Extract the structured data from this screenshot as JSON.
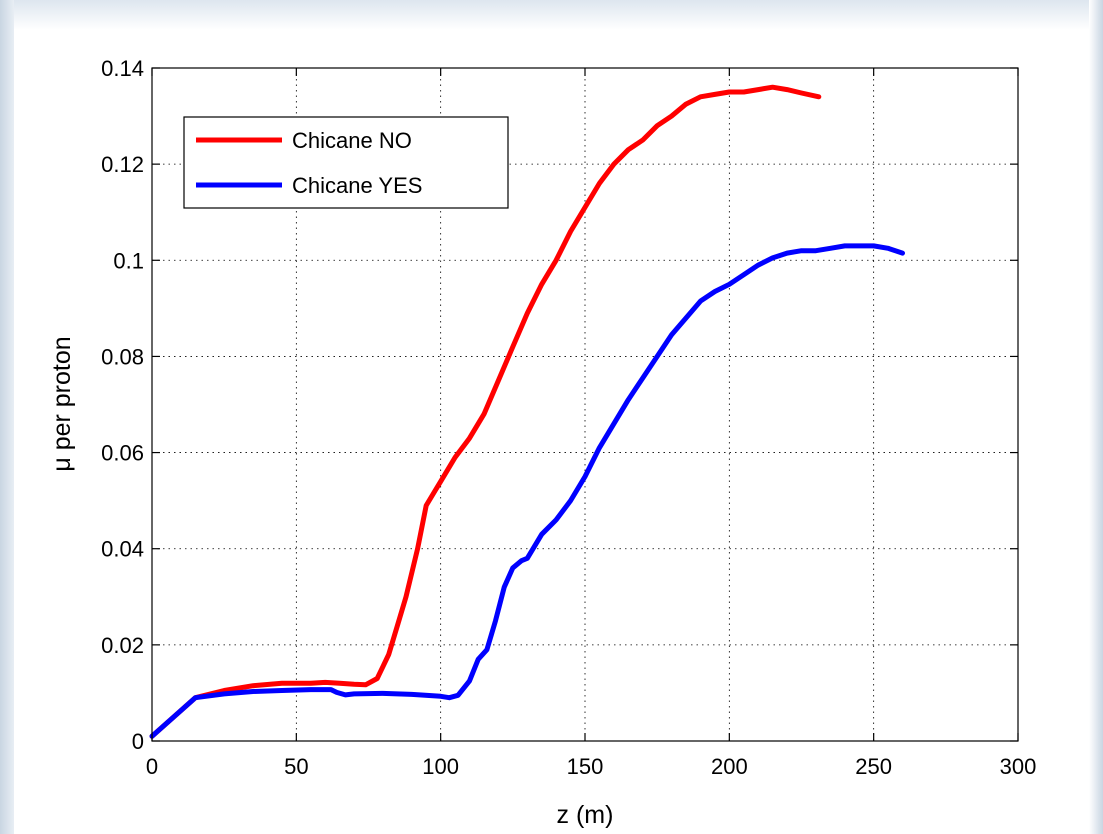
{
  "chart_data": {
    "type": "line",
    "title": "",
    "xlabel": "z (m)",
    "ylabel": "μ per proton",
    "xlim": [
      0,
      300
    ],
    "ylim": [
      0,
      0.14
    ],
    "xticks": [
      0,
      50,
      100,
      150,
      200,
      250,
      300
    ],
    "yticks": [
      0,
      0.02,
      0.04,
      0.06,
      0.08,
      0.1,
      0.12,
      0.14
    ],
    "xtick_labels": [
      "0",
      "50",
      "100",
      "150",
      "200",
      "250",
      "300"
    ],
    "ytick_labels": [
      "0",
      "0.02",
      "0.04",
      "0.06",
      "0.08",
      "0.1",
      "0.12",
      "0.14"
    ],
    "grid": true,
    "legend_position": "top-left",
    "series": [
      {
        "name": "Chicane NO",
        "color": "#ff0000",
        "x": [
          0,
          15,
          25,
          35,
          45,
          55,
          60,
          65,
          70,
          74,
          78,
          82,
          85,
          88,
          92,
          95,
          98,
          100,
          105,
          110,
          115,
          120,
          125,
          130,
          135,
          140,
          145,
          150,
          155,
          160,
          165,
          170,
          175,
          180,
          185,
          190,
          195,
          200,
          205,
          210,
          215,
          220,
          225,
          231
        ],
        "y": [
          0.001,
          0.009,
          0.0105,
          0.0115,
          0.012,
          0.012,
          0.0122,
          0.012,
          0.0118,
          0.0117,
          0.013,
          0.018,
          0.024,
          0.03,
          0.04,
          0.049,
          0.052,
          0.054,
          0.059,
          0.063,
          0.068,
          0.075,
          0.082,
          0.089,
          0.095,
          0.1,
          0.106,
          0.111,
          0.116,
          0.12,
          0.123,
          0.125,
          0.128,
          0.13,
          0.1325,
          0.134,
          0.1345,
          0.135,
          0.135,
          0.1355,
          0.136,
          0.1355,
          0.1348,
          0.134
        ]
      },
      {
        "name": "Chicane YES",
        "color": "#0000ff",
        "x": [
          0,
          15,
          25,
          35,
          45,
          55,
          62,
          64,
          67,
          70,
          80,
          90,
          100,
          103,
          106,
          110,
          113,
          116,
          119,
          122,
          125,
          128,
          130,
          135,
          140,
          145,
          150,
          155,
          160,
          165,
          170,
          175,
          180,
          185,
          190,
          195,
          200,
          205,
          210,
          215,
          220,
          225,
          230,
          235,
          240,
          245,
          250,
          255,
          260
        ],
        "y": [
          0.001,
          0.009,
          0.0098,
          0.0103,
          0.0105,
          0.0107,
          0.0107,
          0.0101,
          0.0096,
          0.0098,
          0.0099,
          0.0097,
          0.0093,
          0.009,
          0.0095,
          0.0125,
          0.017,
          0.019,
          0.025,
          0.032,
          0.036,
          0.0375,
          0.038,
          0.043,
          0.046,
          0.05,
          0.055,
          0.061,
          0.066,
          0.071,
          0.0755,
          0.08,
          0.0845,
          0.088,
          0.0915,
          0.0935,
          0.095,
          0.097,
          0.099,
          0.1005,
          0.1015,
          0.102,
          0.102,
          0.1025,
          0.103,
          0.103,
          0.103,
          0.1025,
          0.1015
        ]
      }
    ]
  }
}
